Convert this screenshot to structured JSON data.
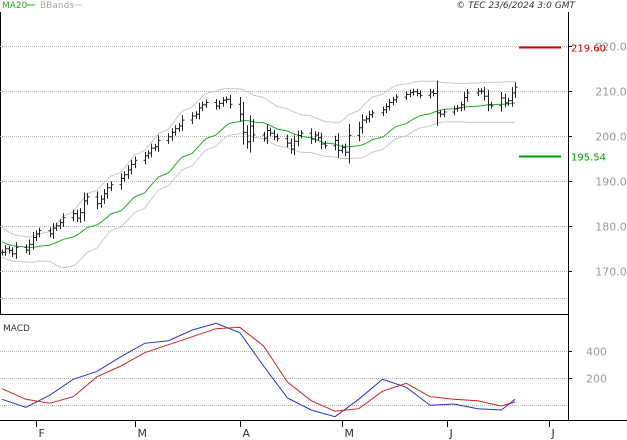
{
  "header": {
    "legend_ma": "MA20",
    "legend_bb": "BBands",
    "source": "© TEC 23/6/2024 3:0 GMT"
  },
  "macd_panel": {
    "label": "MACD"
  },
  "colors": {
    "price_bars": "#222222",
    "ma20": "#22aa22",
    "bbands": "#c8c8c8",
    "resistance": "#cc0000",
    "support": "#009900",
    "macd_line": "#2233cc",
    "signal_line": "#cc2222",
    "grid": "#b5b5b5",
    "tick_label": "#9a9a9a"
  },
  "chart_data": [
    {
      "type": "ohlc",
      "panel": "price",
      "x_type": "date",
      "x": [
        "2024-01-22",
        "2024-01-23",
        "2024-01-24",
        "2024-01-25",
        "2024-01-26",
        "2024-01-29",
        "2024-01-30",
        "2024-01-31",
        "2024-02-01",
        "2024-02-02",
        "2024-02-05",
        "2024-02-06",
        "2024-02-07",
        "2024-02-08",
        "2024-02-09",
        "2024-02-12",
        "2024-02-13",
        "2024-02-14",
        "2024-02-15",
        "2024-02-16",
        "2024-02-19",
        "2024-02-20",
        "2024-02-21",
        "2024-02-22",
        "2024-02-23",
        "2024-02-26",
        "2024-02-27",
        "2024-02-28",
        "2024-02-29",
        "2024-03-01",
        "2024-03-04",
        "2024-03-05",
        "2024-03-06",
        "2024-03-07",
        "2024-03-08",
        "2024-03-11",
        "2024-03-12",
        "2024-03-13",
        "2024-03-14",
        "2024-03-15",
        "2024-03-18",
        "2024-03-19",
        "2024-03-20",
        "2024-03-21",
        "2024-03-22",
        "2024-03-25",
        "2024-03-26",
        "2024-03-27",
        "2024-03-28",
        "2024-03-29",
        "2024-04-01",
        "2024-04-02",
        "2024-04-03",
        "2024-04-04",
        "2024-04-05",
        "2024-04-08",
        "2024-04-09",
        "2024-04-10",
        "2024-04-11",
        "2024-04-12",
        "2024-04-15",
        "2024-04-16",
        "2024-04-17",
        "2024-04-18",
        "2024-04-19",
        "2024-04-22",
        "2024-04-23",
        "2024-04-24",
        "2024-04-25",
        "2024-04-26",
        "2024-04-29",
        "2024-04-30",
        "2024-05-01",
        "2024-05-02",
        "2024-05-03",
        "2024-05-06",
        "2024-05-07",
        "2024-05-08",
        "2024-05-09",
        "2024-05-10",
        "2024-05-13",
        "2024-05-14",
        "2024-05-15",
        "2024-05-16",
        "2024-05-17",
        "2024-05-20",
        "2024-05-21",
        "2024-05-22",
        "2024-05-23",
        "2024-05-24",
        "2024-05-27",
        "2024-05-28",
        "2024-05-29",
        "2024-05-30",
        "2024-05-31",
        "2024-06-03",
        "2024-06-04",
        "2024-06-05",
        "2024-06-06",
        "2024-06-07",
        "2024-06-10",
        "2024-06-11",
        "2024-06-12",
        "2024-06-13",
        "2024-06-14",
        "2024-06-17",
        "2024-06-18",
        "2024-06-19",
        "2024-06-20",
        "2024-06-21"
      ],
      "close": [
        17420,
        17500,
        17460,
        17390,
        17530,
        17470,
        17600,
        17750,
        17830,
        17900,
        17830,
        17960,
        18010,
        18080,
        18190,
        18280,
        18180,
        18300,
        18560,
        18650,
        18500,
        18600,
        18720,
        18850,
        18920,
        19060,
        19140,
        19250,
        19370,
        19460,
        19560,
        19620,
        19730,
        19760,
        19900,
        19980,
        20080,
        20160,
        20220,
        20350,
        20440,
        20480,
        20620,
        20690,
        20740,
        20660,
        20720,
        20790,
        20810,
        20700,
        20480,
        20080,
        19870,
        20220,
        20020,
        19950,
        20120,
        20060,
        19980,
        19940,
        19840,
        19710,
        19880,
        20010,
        20060,
        19930,
        20020,
        19960,
        19820,
        19780,
        19900,
        19680,
        19740,
        19640,
        20010,
        20180,
        20350,
        20380,
        20470,
        20510,
        20580,
        20650,
        20740,
        20800,
        20860,
        20920,
        20960,
        20980,
        20940,
        20900,
        20970,
        20940,
        20510,
        20480,
        20530,
        20600,
        20620,
        20690,
        20850,
        20950,
        20990,
        20990,
        20880,
        20690,
        20670,
        20840,
        20730,
        20780,
        20950,
        21080
      ],
      "ma20": [
        17660,
        17620,
        17590,
        17570,
        17560,
        17540,
        17530,
        17530,
        17540,
        17560,
        17580,
        17610,
        17640,
        17670,
        17710,
        17760,
        17800,
        17850,
        17910,
        17970,
        18030,
        18080,
        18140,
        18200,
        18270,
        18340,
        18410,
        18490,
        18570,
        18650,
        18740,
        18830,
        18920,
        19000,
        19090,
        19180,
        19270,
        19360,
        19450,
        19530,
        19610,
        19700,
        19780,
        19860,
        19940,
        20020,
        20090,
        20160,
        20230,
        20280,
        20320,
        20340,
        20340,
        20330,
        20310,
        20290,
        20260,
        20230,
        20190,
        20150,
        20110,
        20070,
        20040,
        20020,
        19990,
        19960,
        19930,
        19900,
        19870,
        19840,
        19820,
        19790,
        19770,
        19760,
        19760,
        19780,
        19800,
        19830,
        19870,
        19920,
        19970,
        20030,
        20090,
        20150,
        20210,
        20270,
        20320,
        20370,
        20410,
        20450,
        20490,
        20520,
        20550,
        20570,
        20590,
        20600,
        20610,
        20620,
        20640,
        20650,
        20660,
        20670,
        20680,
        20690,
        20690,
        20700,
        20700,
        20710,
        20720,
        20730
      ],
      "bb_upper": [
        17980,
        17920,
        17870,
        17830,
        17800,
        17770,
        17760,
        17770,
        17790,
        17830,
        17880,
        17950,
        18030,
        18120,
        18220,
        18320,
        18420,
        18520,
        18620,
        18720,
        18800,
        18880,
        18960,
        19040,
        19110,
        19190,
        19280,
        19380,
        19480,
        19580,
        19680,
        19770,
        19860,
        19950,
        20050,
        20150,
        20250,
        20350,
        20450,
        20550,
        20640,
        20720,
        20800,
        20880,
        20940,
        20990,
        21020,
        21040,
        21050,
        21050,
        21040,
        21020,
        20990,
        20950,
        20900,
        20850,
        20800,
        20750,
        20700,
        20650,
        20600,
        20560,
        20530,
        20500,
        20470,
        20440,
        20410,
        20380,
        20350,
        20320,
        20300,
        20290,
        20330,
        20390,
        20470,
        20560,
        20640,
        20720,
        20790,
        20860,
        20920,
        20980,
        21030,
        21080,
        21120,
        21150,
        21170,
        21190,
        21200,
        21210,
        21210,
        21210,
        21200,
        21190,
        21180,
        21170,
        21160,
        21160,
        21160,
        21170,
        21170,
        21180,
        21180,
        21190,
        21190,
        21190,
        21200,
        21200,
        21200,
        21200
      ],
      "bb_lower": [
        17320,
        17280,
        17250,
        17230,
        17220,
        17210,
        17200,
        17200,
        17210,
        17230,
        17220,
        17180,
        17140,
        17100,
        17080,
        17120,
        17180,
        17250,
        17330,
        17420,
        17520,
        17620,
        17720,
        17810,
        17900,
        17980,
        18060,
        18140,
        18220,
        18300,
        18400,
        18500,
        18600,
        18700,
        18800,
        18900,
        18990,
        19080,
        19160,
        19250,
        19340,
        19430,
        19520,
        19610,
        19690,
        19770,
        19850,
        19920,
        19980,
        20020,
        20050,
        20050,
        20030,
        20000,
        19970,
        19940,
        19900,
        19860,
        19820,
        19780,
        19740,
        19700,
        19680,
        19660,
        19640,
        19630,
        19610,
        19590,
        19570,
        19550,
        19530,
        19510,
        19500,
        19500,
        19500,
        19510,
        19520,
        19550,
        19590,
        19640,
        19700,
        19760,
        19820,
        19880,
        19940,
        20000,
        20050,
        20100,
        20140,
        20180,
        20220,
        20250,
        20280,
        20300,
        20310,
        20310,
        20310,
        20310,
        20310,
        20300,
        20300,
        20300,
        20300,
        20300,
        20300,
        20300,
        20300,
        20300,
        20300,
        20300
      ],
      "levels": [
        {
          "value": 21960,
          "label": "219.60",
          "kind": "resistance"
        },
        {
          "value": 19554,
          "label": "195.54",
          "kind": "support"
        }
      ],
      "y_ticks": [
        {
          "value": 22000,
          "label": "220.0"
        },
        {
          "value": 21000,
          "label": "210.0"
        },
        {
          "value": 20000,
          "label": "200.0"
        },
        {
          "value": 19000,
          "label": "190.0"
        },
        {
          "value": 18000,
          "label": "180.0"
        },
        {
          "value": 17000,
          "label": "170.0"
        }
      ],
      "ylim": [
        16100,
        22700
      ],
      "x_months": [
        {
          "label": "F",
          "date": "2024-02-01"
        },
        {
          "label": "M",
          "date": "2024-03-01"
        },
        {
          "label": "A",
          "date": "2024-04-01"
        },
        {
          "label": "M",
          "date": "2024-05-01"
        },
        {
          "label": "J",
          "date": "2024-06-01"
        },
        {
          "label": "J",
          "date": "2024-07-01"
        }
      ],
      "xlim": [
        "2024-01-22",
        "2024-07-06"
      ]
    },
    {
      "type": "line",
      "panel": "macd",
      "x_type": "date",
      "x": [
        "2024-01-22",
        "2024-01-29",
        "2024-02-05",
        "2024-02-12",
        "2024-02-19",
        "2024-02-26",
        "2024-03-04",
        "2024-03-11",
        "2024-03-18",
        "2024-03-25",
        "2024-04-01",
        "2024-04-08",
        "2024-04-15",
        "2024-04-22",
        "2024-04-29",
        "2024-05-06",
        "2024-05-13",
        "2024-05-20",
        "2024-05-27",
        "2024-06-03",
        "2024-06-10",
        "2024-06-17",
        "2024-06-21"
      ],
      "series": [
        {
          "name": "MACD",
          "values": [
            40,
            -20,
            70,
            190,
            250,
            360,
            460,
            480,
            560,
            610,
            540,
            290,
            50,
            -40,
            -90,
            40,
            190,
            130,
            -5,
            5,
            -30,
            -40,
            40
          ]
        },
        {
          "name": "Signal",
          "values": [
            120,
            40,
            10,
            60,
            210,
            290,
            390,
            450,
            510,
            570,
            580,
            440,
            170,
            30,
            -50,
            -30,
            100,
            160,
            60,
            40,
            30,
            -10,
            20
          ]
        }
      ],
      "y_ticks": [
        {
          "value": 400,
          "label": "400"
        },
        {
          "value": 200,
          "label": "200"
        }
      ],
      "ylim": [
        -100,
        650
      ],
      "xlim": [
        "2024-01-22",
        "2024-07-06"
      ]
    }
  ]
}
